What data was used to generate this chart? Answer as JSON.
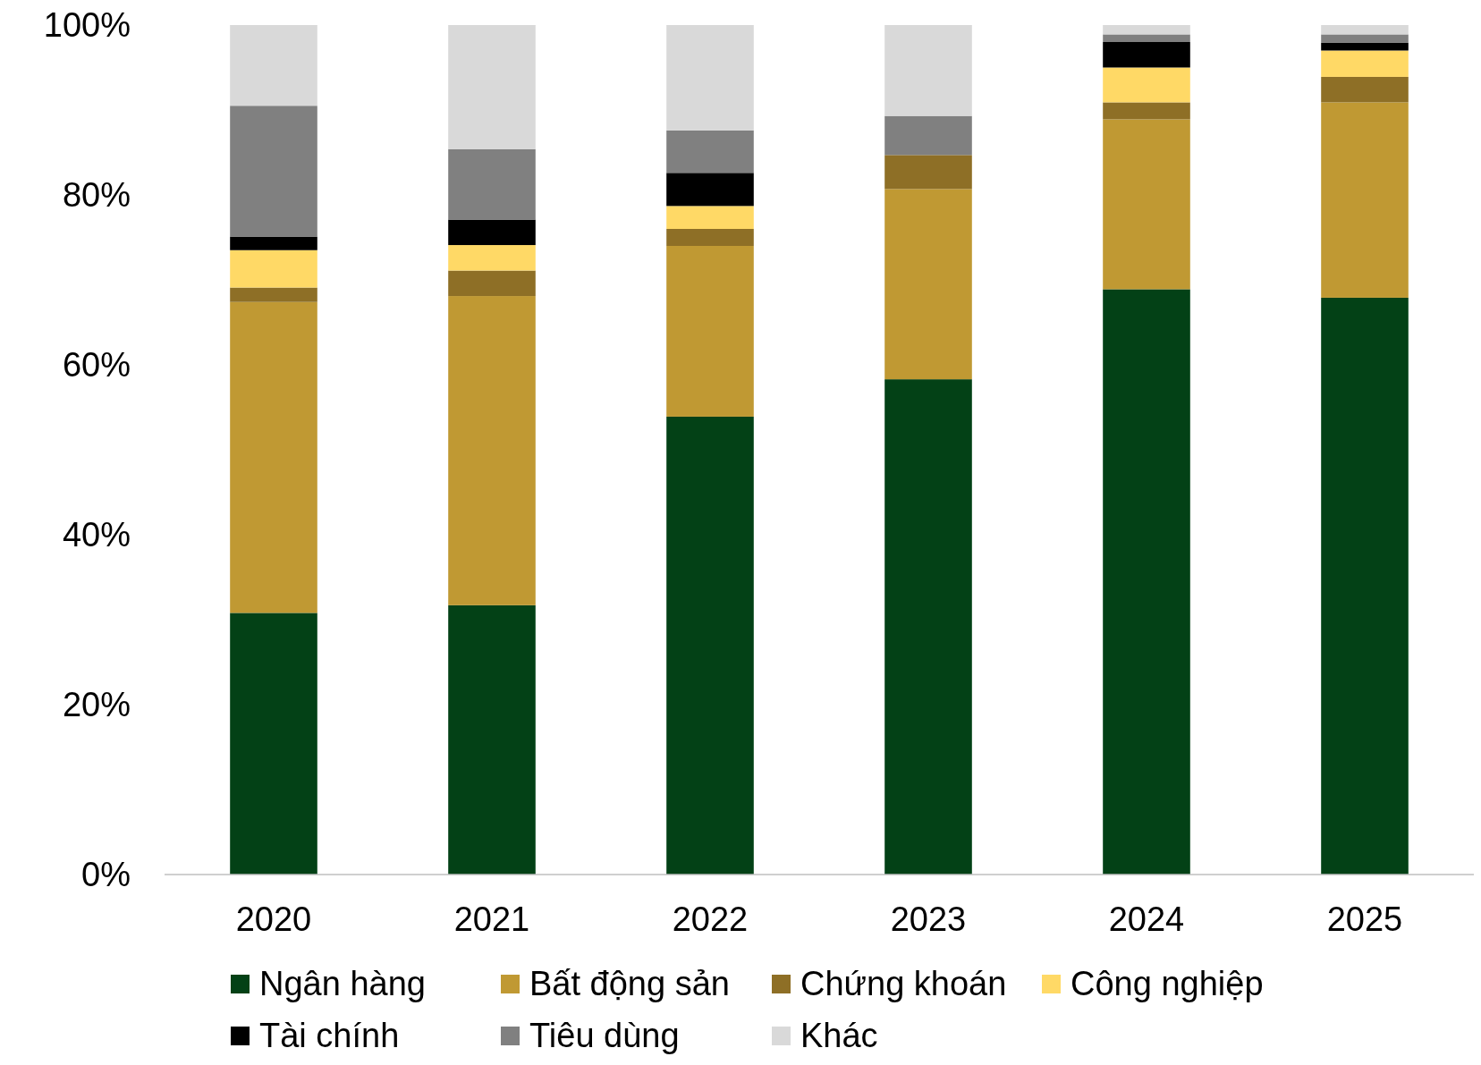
{
  "chart_data": {
    "type": "bar",
    "stacked": true,
    "categories": [
      "2020",
      "2021",
      "2022",
      "2023",
      "2024",
      "2025"
    ],
    "ylim": [
      0,
      100
    ],
    "yticks": [
      {
        "value": 0,
        "label": "0%"
      },
      {
        "value": 20,
        "label": "20%"
      },
      {
        "value": 40,
        "label": "40%"
      },
      {
        "value": 60,
        "label": "60%"
      },
      {
        "value": 80,
        "label": "80%"
      },
      {
        "value": 100,
        "label": "100%"
      }
    ],
    "grid": false,
    "legend": "bottom",
    "series": [
      {
        "name": "Ngân hàng",
        "color": "#034116",
        "values": [
          30.8,
          31.7,
          53.9,
          58.3,
          68.9,
          67.9
        ]
      },
      {
        "name": "Bất động sản",
        "color": "#c09933",
        "values": [
          36.6,
          36.4,
          20.1,
          22.4,
          20.0,
          23.0
        ]
      },
      {
        "name": "Chứng khoán",
        "color": "#8e6f26",
        "values": [
          1.7,
          3.0,
          2.0,
          4.0,
          2.0,
          3.0
        ]
      },
      {
        "name": "Công nghiệp",
        "color": "#ffd966",
        "values": [
          4.4,
          3.0,
          2.7,
          0,
          4.1,
          3.1
        ]
      },
      {
        "name": "Tài chính",
        "color": "#000000",
        "values": [
          1.6,
          3.0,
          3.9,
          0,
          3.0,
          0.9
        ]
      },
      {
        "name": "Tiêu dùng",
        "color": "#808080",
        "values": [
          15.4,
          8.3,
          5.0,
          4.6,
          0.9,
          1.0
        ]
      },
      {
        "name": "Khác",
        "color": "#d9d9d9",
        "values": [
          9.5,
          14.6,
          12.4,
          10.7,
          1.1,
          1.1
        ]
      }
    ]
  }
}
